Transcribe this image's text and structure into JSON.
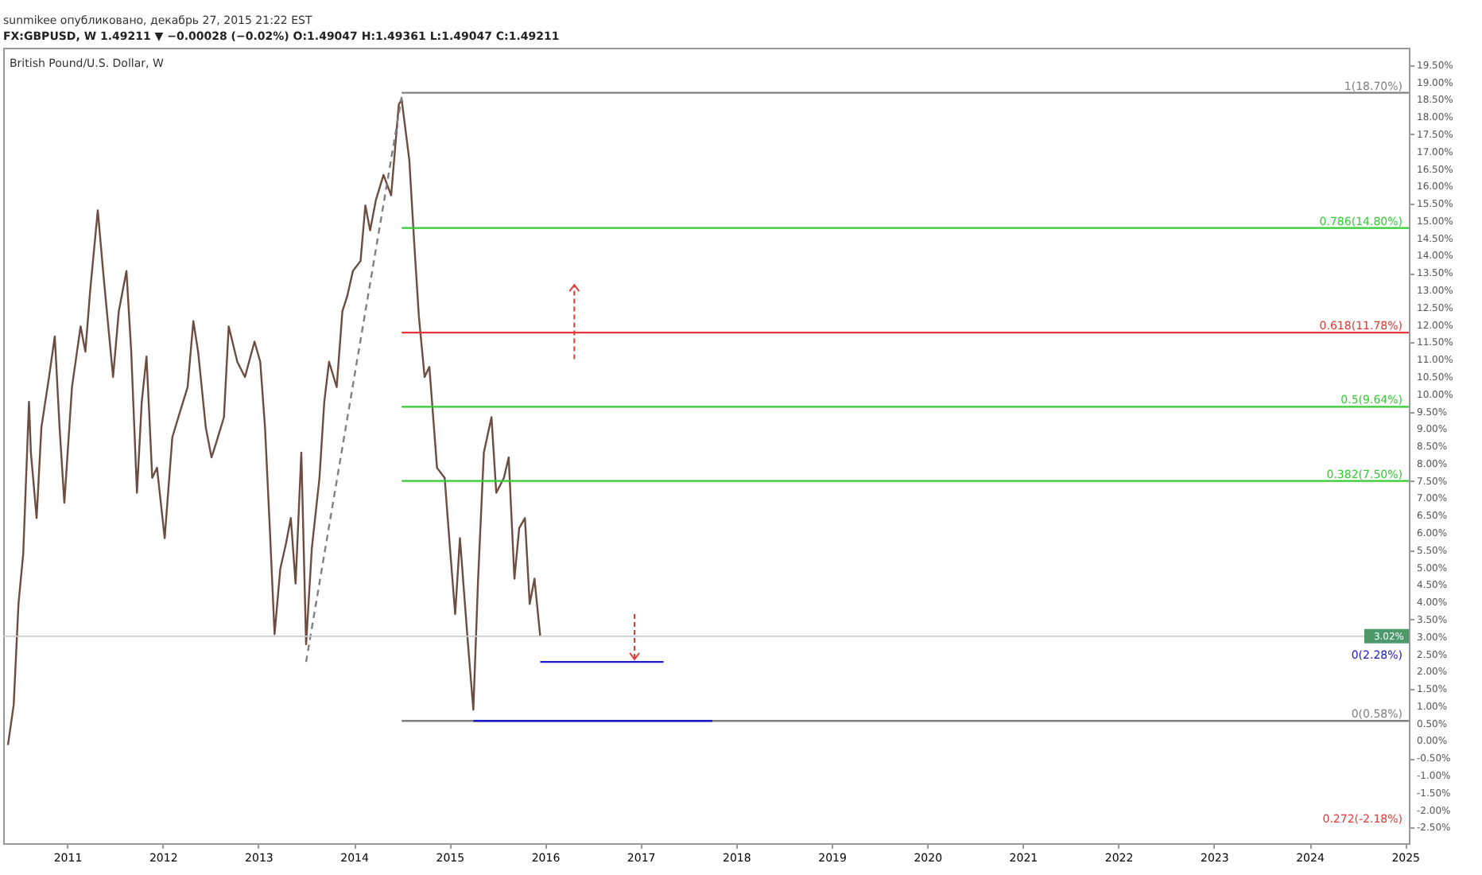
{
  "chart_data": {
    "type": "line",
    "title": "sunmikee опубликовано, декабрь 27, 2015 21:22 EST",
    "subtitle": "FX:GBPUSD, W 1.49211 ▼ −0.00028 (−0.02%) O:1.49047 H:1.49361 L:1.49047 C:1.49211",
    "annotations": [
      "British Pound/U.S. Dollar, W",
      "0.272(-2.18%)"
    ],
    "xlim": [
      2010.33,
      2025.04
    ],
    "xticks": [
      2011,
      2012,
      2013,
      2014,
      2015,
      2016,
      2017,
      2018,
      2019,
      2020,
      2021,
      2022,
      2023,
      2024,
      2025
    ],
    "ylim": [
      -2.95,
      20.0
    ],
    "yticks": [
      {
        "value": -2.5,
        "label": "-2.50%"
      },
      {
        "value": -2,
        "label": "-2.00%"
      },
      {
        "value": -1.5,
        "label": "-1.50%"
      },
      {
        "value": -1,
        "label": "-1.00%"
      },
      {
        "value": -0.5,
        "label": "-0.50%"
      },
      {
        "value": 0,
        "label": "0.00%"
      },
      {
        "value": 0.5,
        "label": "0.50%"
      },
      {
        "value": 1,
        "label": "1.00%"
      },
      {
        "value": 1.5,
        "label": "1.50%"
      },
      {
        "value": 2,
        "label": "2.00%"
      },
      {
        "value": 2.5,
        "label": "2.50%"
      },
      {
        "value": 3,
        "label": "3.00%"
      },
      {
        "value": 3.5,
        "label": "3.50%"
      },
      {
        "value": 4,
        "label": "4.00%"
      },
      {
        "value": 4.5,
        "label": "4.50%"
      },
      {
        "value": 5,
        "label": "5.00%"
      },
      {
        "value": 5.5,
        "label": "5.50%"
      },
      {
        "value": 6,
        "label": "6.00%"
      },
      {
        "value": 6.5,
        "label": "6.50%"
      },
      {
        "value": 7,
        "label": "7.00%"
      },
      {
        "value": 7.5,
        "label": "7.50%"
      },
      {
        "value": 8,
        "label": "8.00%"
      },
      {
        "value": 8.5,
        "label": "8.50%"
      },
      {
        "value": 9,
        "label": "9.00%"
      },
      {
        "value": 9.5,
        "label": "9.50%"
      },
      {
        "value": 10,
        "label": "10.00%"
      },
      {
        "value": 10.5,
        "label": "10.50%"
      },
      {
        "value": 11,
        "label": "11.00%"
      },
      {
        "value": 11.5,
        "label": "11.50%"
      },
      {
        "value": 12,
        "label": "12.00%"
      },
      {
        "value": 12.5,
        "label": "12.50%"
      },
      {
        "value": 13,
        "label": "13.00%"
      },
      {
        "value": 13.5,
        "label": "13.50%"
      },
      {
        "value": 14,
        "label": "14.00%"
      },
      {
        "value": 14.5,
        "label": "14.50%"
      },
      {
        "value": 15,
        "label": "15.00%"
      },
      {
        "value": 15.5,
        "label": "15.50%"
      },
      {
        "value": 16,
        "label": "16.00%"
      },
      {
        "value": 16.5,
        "label": "16.50%"
      },
      {
        "value": 17,
        "label": "17.00%"
      },
      {
        "value": 17.5,
        "label": "17.50%"
      },
      {
        "value": 18,
        "label": "18.00%"
      },
      {
        "value": 18.5,
        "label": "18.50%"
      },
      {
        "value": 19,
        "label": "19.00%"
      },
      {
        "value": 19.5,
        "label": "19.50%"
      }
    ],
    "marker": "none",
    "ref_lines": [
      {
        "axis": "y",
        "value": 3.02,
        "label": "3.02%",
        "color": "#cccccc"
      }
    ],
    "series": [
      {
        "color": "#6d4c41",
        "x": [
          2010.38,
          2010.44,
          2010.49,
          2010.54,
          2010.6,
          2010.62,
          2010.68,
          2010.73,
          2010.81,
          2010.87,
          2010.92,
          2010.97,
          2011.05,
          2011.14,
          2011.19,
          2011.24,
          2011.32,
          2011.38,
          2011.43,
          2011.48,
          2011.54,
          2011.62,
          2011.67,
          2011.73,
          2011.78,
          2011.83,
          2011.89,
          2011.94,
          2012.02,
          2012.1,
          2012.18,
          2012.26,
          2012.32,
          2012.37,
          2012.45,
          2012.51,
          2012.56,
          2012.64,
          2012.69,
          2012.78,
          2012.86,
          2012.96,
          2013.02,
          2013.07,
          2013.12,
          2013.17,
          2013.23,
          2013.29,
          2013.34,
          2013.39,
          2013.45,
          2013.5,
          2013.56,
          2013.64,
          2013.69,
          2013.74,
          2013.82,
          2013.88,
          2013.93,
          2013.99,
          2014.07,
          2014.12,
          2014.17,
          2014.23,
          2014.31,
          2014.39,
          2014.47,
          2014.5,
          2014.58,
          2014.63,
          2014.68,
          2014.74,
          2014.79,
          2014.87,
          2014.95,
          2015.01,
          2015.06,
          2015.11,
          2015.19,
          2015.25,
          2015.3,
          2015.36,
          2015.44,
          2015.49,
          2015.57,
          2015.62,
          2015.68,
          2015.73,
          2015.79,
          2015.84,
          2015.89,
          2015.95
        ],
        "values": [
          -0.12,
          1.04,
          3.95,
          5.41,
          9.78,
          8.32,
          6.43,
          9.05,
          10.5,
          11.67,
          9.05,
          6.87,
          10.21,
          11.96,
          11.23,
          12.98,
          15.31,
          13.42,
          11.96,
          10.5,
          12.4,
          13.56,
          11.23,
          7.16,
          9.78,
          11.09,
          7.59,
          7.88,
          5.85,
          8.76,
          9.49,
          10.21,
          12.11,
          11.23,
          9.05,
          8.18,
          8.61,
          9.34,
          11.96,
          10.94,
          10.5,
          11.52,
          10.94,
          9.05,
          6.14,
          3.08,
          4.97,
          5.7,
          6.43,
          4.54,
          8.32,
          2.79,
          5.56,
          7.59,
          9.78,
          10.94,
          10.21,
          12.4,
          12.83,
          13.56,
          13.85,
          15.45,
          14.73,
          15.6,
          16.33,
          15.74,
          18.36,
          18.51,
          16.76,
          14.43,
          12.25,
          10.5,
          10.79,
          7.88,
          7.59,
          5.41,
          3.66,
          5.85,
          2.94,
          0.9,
          4.68,
          8.32,
          9.34,
          7.16,
          7.59,
          8.18,
          4.68,
          6.14,
          6.43,
          3.95,
          4.68,
          3.02
        ]
      },
      {
        "color": "#808080",
        "line_style": "dashed",
        "x": [
          2013.5,
          2014.5
        ],
        "values": [
          2.28,
          18.58
        ]
      },
      {
        "name": "1(18.70%)",
        "color": "#808080",
        "x": [
          2014.5,
          2025.04
        ],
        "values": [
          18.7,
          18.7
        ]
      },
      {
        "name": "0.786(14.80%)",
        "color": "#33cc33",
        "x": [
          2014.5,
          2025.04
        ],
        "values": [
          14.8,
          14.8
        ]
      },
      {
        "name": "0.618(11.78%)",
        "color": "#e53935",
        "x": [
          2014.5,
          2025.04
        ],
        "values": [
          11.78,
          11.78
        ]
      },
      {
        "name": "0.5(9.64%)",
        "color": "#33cc33",
        "x": [
          2014.5,
          2025.04
        ],
        "values": [
          9.64,
          9.64
        ]
      },
      {
        "name": "0.382(7.50%)",
        "color": "#33cc33",
        "x": [
          2014.5,
          2025.04
        ],
        "values": [
          7.5,
          7.5
        ]
      },
      {
        "name": "0(0.58%)",
        "color": "#808080",
        "x": [
          2014.5,
          2025.04
        ],
        "values": [
          0.58,
          0.58
        ]
      },
      {
        "name": "0(2.28%)",
        "color": "#1a1acc",
        "x": [
          2015.95,
          2017.24
        ],
        "values": [
          2.28,
          2.28
        ]
      },
      {
        "color": "#1a1acc",
        "x": [
          2015.25,
          2017.75
        ],
        "values": [
          0.58,
          0.58
        ]
      }
    ]
  }
}
